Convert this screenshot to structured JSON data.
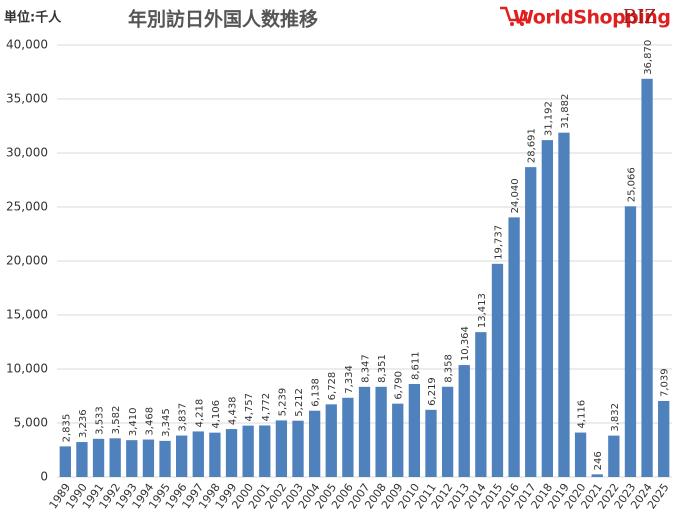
{
  "chart_data": {
    "type": "bar",
    "title": "年別訪日外国人数推移",
    "unit_label": "単位:千人",
    "logo": [
      "WorldShopping",
      "BIZ"
    ],
    "categories": [
      "1989",
      "1990",
      "1991",
      "1992",
      "1993",
      "1994",
      "1995",
      "1996",
      "1997",
      "1998",
      "1999",
      "2000",
      "2001",
      "2002",
      "2003",
      "2004",
      "2005",
      "2006",
      "2007",
      "2008",
      "2009",
      "2010",
      "2011",
      "2012",
      "2013",
      "2014",
      "2015",
      "2016",
      "2017",
      "2018",
      "2019",
      "2020",
      "2021",
      "2022",
      "2023",
      "2024",
      "2025"
    ],
    "values": [
      2835,
      3236,
      3533,
      3582,
      3410,
      3468,
      3345,
      3837,
      4218,
      4106,
      4438,
      4757,
      4772,
      5239,
      5212,
      6138,
      6728,
      7334,
      8347,
      8351,
      6790,
      8611,
      6219,
      8358,
      10364,
      13413,
      19737,
      24040,
      28691,
      31192,
      31882,
      4116,
      246,
      3832,
      25066,
      36870,
      7039
    ],
    "value_labels": [
      "2,835",
      "3,236",
      "3,533",
      "3,582",
      "3,410",
      "3,468",
      "3,345",
      "3,837",
      "4,218",
      "4,106",
      "4,438",
      "4,757",
      "4,772",
      "5,239",
      "5,212",
      "6,138",
      "6,728",
      "7,334",
      "8,347",
      "8,351",
      "6,790",
      "8,611",
      "6,219",
      "8,358",
      "10,364",
      "13,413",
      "19,737",
      "24,040",
      "28,691",
      "31,192",
      "31,882",
      "4,116",
      "246",
      "3,832",
      "25,066",
      "36,870",
      "7,039"
    ],
    "color": "#4f81bd",
    "ylim": [
      0,
      40000
    ],
    "yticks": [
      0,
      {
        "value": 5000,
        "label": "5,000"
      },
      {
        "value": 10000,
        "label": "10,000"
      },
      {
        "value": 15000,
        "label": "15,000"
      },
      {
        "value": 20000,
        "label": "20,000"
      },
      {
        "value": 25000,
        "label": "25,000"
      },
      {
        "value": 30000,
        "label": "30,000"
      },
      {
        "value": 35000,
        "label": "35,000"
      },
      {
        "value": 40000,
        "label": "40,000"
      }
    ],
    "grid": true
  }
}
